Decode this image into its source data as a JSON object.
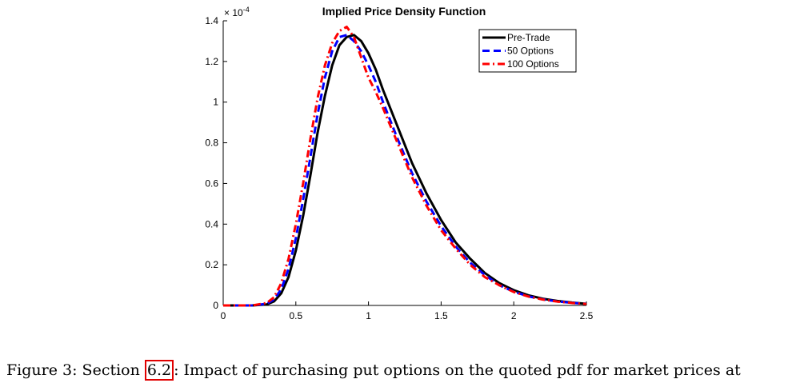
{
  "caption": {
    "prefix": "Figure 3:  Section ",
    "ref": "6.2",
    "suffix": ":  Impact of purchasing put options on the quoted pdf for market prices at"
  },
  "chart_data": {
    "type": "line",
    "title": "Implied Price Density Function",
    "xlabel": "",
    "ylabel": "",
    "xlim": [
      0,
      2.5
    ],
    "ylim": [
      0,
      1.4
    ],
    "y_exponent_label": "× 10",
    "y_exponent_power": "-4",
    "xticks": [
      0,
      0.5,
      1,
      1.5,
      2,
      2.5
    ],
    "xtick_labels": [
      "0",
      "0.5",
      "1",
      "1.5",
      "2",
      "2.5"
    ],
    "yticks": [
      0,
      0.2,
      0.4,
      0.6,
      0.8,
      1,
      1.2,
      1.4
    ],
    "ytick_labels": [
      "0",
      "0.2",
      "0.4",
      "0.6",
      "0.8",
      "1",
      "1.2",
      "1.4"
    ],
    "grid": false,
    "legend_position": "top-right",
    "series": [
      {
        "name": "Pre-Trade",
        "color": "#000000",
        "style": "solid",
        "x": [
          0,
          0.2,
          0.3,
          0.35,
          0.4,
          0.45,
          0.5,
          0.55,
          0.6,
          0.65,
          0.7,
          0.75,
          0.8,
          0.85,
          0.9,
          0.95,
          1.0,
          1.05,
          1.1,
          1.2,
          1.3,
          1.4,
          1.5,
          1.6,
          1.7,
          1.8,
          1.9,
          2.0,
          2.1,
          2.2,
          2.3,
          2.4,
          2.5
        ],
        "y": [
          0,
          0,
          0.005,
          0.02,
          0.06,
          0.14,
          0.27,
          0.44,
          0.64,
          0.85,
          1.03,
          1.18,
          1.28,
          1.32,
          1.33,
          1.3,
          1.24,
          1.16,
          1.06,
          0.88,
          0.7,
          0.55,
          0.42,
          0.31,
          0.23,
          0.16,
          0.11,
          0.075,
          0.05,
          0.033,
          0.022,
          0.014,
          0.008
        ]
      },
      {
        "name": "50 Options",
        "color": "#0000ff",
        "style": "dashed",
        "x": [
          0,
          0.2,
          0.3,
          0.35,
          0.4,
          0.45,
          0.5,
          0.55,
          0.6,
          0.65,
          0.7,
          0.75,
          0.8,
          0.85,
          0.9,
          0.95,
          1.0,
          1.05,
          1.1,
          1.2,
          1.3,
          1.4,
          1.5,
          1.6,
          1.7,
          1.8,
          1.9,
          2.0,
          2.1,
          2.2,
          2.3,
          2.4,
          2.5
        ],
        "y": [
          0,
          0,
          0.008,
          0.03,
          0.08,
          0.18,
          0.33,
          0.52,
          0.73,
          0.94,
          1.12,
          1.25,
          1.32,
          1.33,
          1.3,
          1.25,
          1.18,
          1.1,
          1.0,
          0.82,
          0.65,
          0.51,
          0.39,
          0.29,
          0.21,
          0.15,
          0.1,
          0.068,
          0.045,
          0.03,
          0.02,
          0.013,
          0.008
        ]
      },
      {
        "name": "100 Options",
        "color": "#ff0000",
        "style": "dashdot",
        "x": [
          0,
          0.2,
          0.3,
          0.35,
          0.4,
          0.45,
          0.5,
          0.55,
          0.6,
          0.65,
          0.7,
          0.75,
          0.8,
          0.85,
          0.9,
          0.95,
          1.0,
          1.05,
          1.1,
          1.2,
          1.3,
          1.4,
          1.5,
          1.6,
          1.7,
          1.8,
          1.9,
          2.0,
          2.1,
          2.2,
          2.3,
          2.4,
          2.5
        ],
        "y": [
          0,
          0,
          0.012,
          0.04,
          0.11,
          0.23,
          0.4,
          0.6,
          0.82,
          1.02,
          1.18,
          1.29,
          1.35,
          1.37,
          1.32,
          1.22,
          1.12,
          1.05,
          0.97,
          0.8,
          0.63,
          0.49,
          0.37,
          0.28,
          0.2,
          0.14,
          0.1,
          0.066,
          0.044,
          0.029,
          0.019,
          0.012,
          0.007
        ]
      }
    ]
  }
}
